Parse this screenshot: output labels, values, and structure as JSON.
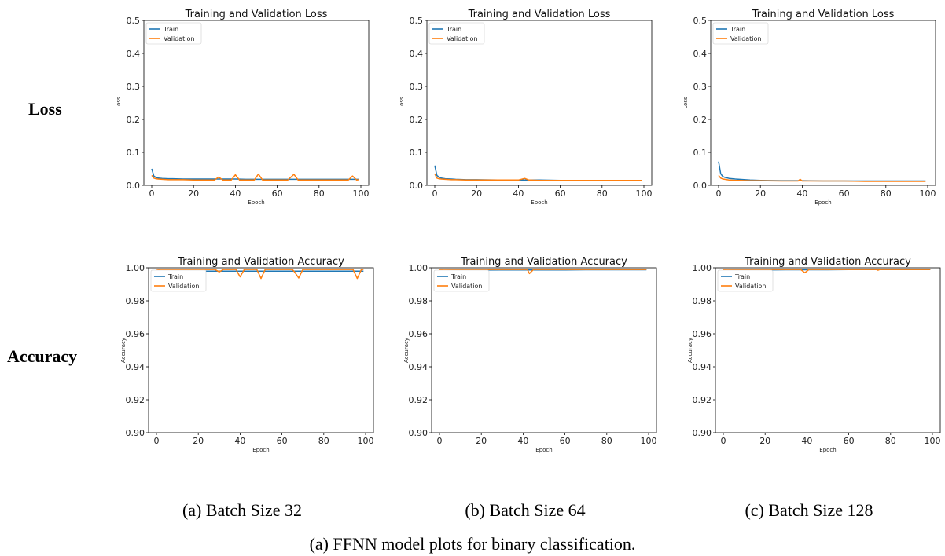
{
  "row_labels": {
    "loss": "Loss",
    "accuracy": "Accuracy"
  },
  "captions": {
    "a": "(a) Batch Size 32",
    "b": "(b) Batch Size 64",
    "c": "(c) Batch Size 128",
    "figure": "(a) FFNN model plots for binary classification."
  },
  "colors": {
    "train": "#1f77b4",
    "validation": "#ff7f0e"
  },
  "chart_data": [
    {
      "type": "line",
      "title": "Training and Validation Loss",
      "xlabel": "Epoch",
      "ylabel": "Loss",
      "xlim": [
        0,
        100
      ],
      "ylim": [
        0,
        0.5
      ],
      "xticks": [
        0,
        20,
        40,
        60,
        80,
        100
      ],
      "xtick_labels": [
        "0",
        "20",
        "40",
        "60",
        "80",
        "100"
      ],
      "yticks": [
        0,
        0.1,
        0.2,
        0.3,
        0.4,
        0.5
      ],
      "ytick_labels": [
        "0.0",
        "0.1",
        "0.2",
        "0.3",
        "0.4",
        "0.5"
      ],
      "grid": false,
      "legend": "top-left",
      "series": [
        {
          "name": "Train",
          "color": "#1f77b4",
          "x": [
            0,
            1,
            2,
            3,
            5,
            8,
            10,
            15,
            20,
            25,
            30,
            35,
            40,
            45,
            50,
            55,
            60,
            65,
            70,
            75,
            80,
            85,
            90,
            95,
            99
          ],
          "y": [
            0.05,
            0.028,
            0.024,
            0.022,
            0.021,
            0.02,
            0.02,
            0.019,
            0.019,
            0.019,
            0.019,
            0.019,
            0.019,
            0.018,
            0.018,
            0.018,
            0.018,
            0.018,
            0.018,
            0.018,
            0.018,
            0.018,
            0.018,
            0.018,
            0.018
          ]
        },
        {
          "name": "Validation",
          "color": "#ff7f0e",
          "x": [
            0,
            1,
            2,
            3,
            5,
            8,
            10,
            15,
            20,
            25,
            30,
            32,
            34,
            38,
            40,
            42,
            45,
            49,
            51,
            53,
            60,
            65,
            68,
            70,
            75,
            80,
            85,
            90,
            94,
            96,
            98,
            99
          ],
          "y": [
            0.03,
            0.022,
            0.02,
            0.019,
            0.018,
            0.017,
            0.017,
            0.017,
            0.016,
            0.016,
            0.016,
            0.025,
            0.016,
            0.016,
            0.032,
            0.016,
            0.016,
            0.016,
            0.034,
            0.016,
            0.016,
            0.016,
            0.033,
            0.016,
            0.016,
            0.016,
            0.016,
            0.016,
            0.016,
            0.028,
            0.016,
            0.017
          ]
        }
      ]
    },
    {
      "type": "line",
      "title": "Training and Validation Loss",
      "xlabel": "Epoch",
      "ylabel": "Loss",
      "xlim": [
        0,
        100
      ],
      "ylim": [
        0,
        0.5
      ],
      "xticks": [
        0,
        20,
        40,
        60,
        80,
        100
      ],
      "xtick_labels": [
        "0",
        "20",
        "40",
        "60",
        "80",
        "100"
      ],
      "yticks": [
        0,
        0.1,
        0.2,
        0.3,
        0.4,
        0.5
      ],
      "ytick_labels": [
        "0.0",
        "0.1",
        "0.2",
        "0.3",
        "0.4",
        "0.5"
      ],
      "grid": false,
      "legend": "top-left",
      "series": [
        {
          "name": "Train",
          "color": "#1f77b4",
          "x": [
            0,
            1,
            2,
            3,
            5,
            8,
            10,
            15,
            20,
            30,
            40,
            50,
            60,
            70,
            80,
            90,
            99
          ],
          "y": [
            0.06,
            0.03,
            0.025,
            0.022,
            0.02,
            0.019,
            0.018,
            0.017,
            0.017,
            0.016,
            0.016,
            0.016,
            0.015,
            0.015,
            0.015,
            0.015,
            0.015
          ]
        },
        {
          "name": "Validation",
          "color": "#ff7f0e",
          "x": [
            0,
            1,
            2,
            3,
            5,
            8,
            10,
            15,
            20,
            30,
            40,
            43,
            45,
            50,
            60,
            70,
            80,
            90,
            99
          ],
          "y": [
            0.035,
            0.022,
            0.02,
            0.019,
            0.018,
            0.017,
            0.017,
            0.016,
            0.016,
            0.016,
            0.016,
            0.021,
            0.016,
            0.015,
            0.015,
            0.015,
            0.015,
            0.015,
            0.015
          ]
        }
      ]
    },
    {
      "type": "line",
      "title": "Training and Validation Loss",
      "xlabel": "Epoch",
      "ylabel": "Loss",
      "xlim": [
        0,
        100
      ],
      "ylim": [
        0,
        0.5
      ],
      "xticks": [
        0,
        20,
        40,
        60,
        80,
        100
      ],
      "xtick_labels": [
        "0",
        "20",
        "40",
        "60",
        "80",
        "100"
      ],
      "yticks": [
        0,
        0.1,
        0.2,
        0.3,
        0.4,
        0.5
      ],
      "ytick_labels": [
        "0.0",
        "0.1",
        "0.2",
        "0.3",
        "0.4",
        "0.5"
      ],
      "grid": false,
      "legend": "top-left",
      "series": [
        {
          "name": "Train",
          "color": "#1f77b4",
          "x": [
            0,
            1,
            2,
            3,
            5,
            8,
            10,
            15,
            20,
            30,
            40,
            50,
            60,
            70,
            80,
            90,
            99
          ],
          "y": [
            0.072,
            0.035,
            0.027,
            0.024,
            0.021,
            0.019,
            0.018,
            0.016,
            0.015,
            0.014,
            0.014,
            0.013,
            0.013,
            0.013,
            0.013,
            0.013,
            0.013
          ]
        },
        {
          "name": "Validation",
          "color": "#ff7f0e",
          "x": [
            0,
            1,
            2,
            3,
            5,
            8,
            10,
            15,
            20,
            30,
            38,
            39,
            40,
            50,
            60,
            70,
            80,
            90,
            99
          ],
          "y": [
            0.03,
            0.022,
            0.019,
            0.018,
            0.016,
            0.015,
            0.015,
            0.014,
            0.014,
            0.013,
            0.013,
            0.018,
            0.013,
            0.013,
            0.013,
            0.012,
            0.012,
            0.012,
            0.012
          ]
        }
      ]
    },
    {
      "type": "line",
      "title": "Training and Validation Accuracy",
      "xlabel": "Epoch",
      "ylabel": "Accuracy",
      "xlim": [
        0,
        100
      ],
      "ylim": [
        0.9,
        1.0
      ],
      "xticks": [
        0,
        20,
        40,
        60,
        80,
        100
      ],
      "xtick_labels": [
        "0",
        "20",
        "40",
        "60",
        "80",
        "100"
      ],
      "yticks": [
        0.9,
        0.92,
        0.94,
        0.96,
        0.98,
        1.0
      ],
      "ytick_labels": [
        "0.90",
        "0.92",
        "0.94",
        "0.96",
        "0.98",
        "1.00"
      ],
      "grid": false,
      "legend": "top-left",
      "series": [
        {
          "name": "Train",
          "color": "#1f77b4",
          "x": [
            0,
            2,
            5,
            10,
            20,
            30,
            40,
            50,
            60,
            70,
            80,
            90,
            99
          ],
          "y": [
            0.9975,
            0.9978,
            0.998,
            0.998,
            0.998,
            0.998,
            0.998,
            0.998,
            0.998,
            0.998,
            0.998,
            0.998,
            0.998
          ]
        },
        {
          "name": "Validation",
          "color": "#ff7f0e",
          "x": [
            0,
            2,
            5,
            10,
            20,
            28,
            30,
            32,
            38,
            40,
            42,
            48,
            50,
            52,
            55,
            60,
            65,
            66,
            68,
            70,
            75,
            80,
            85,
            90,
            94,
            96,
            98,
            99
          ],
          "y": [
            0.9985,
            0.999,
            0.999,
            0.999,
            0.999,
            0.999,
            0.9975,
            0.999,
            0.999,
            0.9945,
            0.999,
            0.999,
            0.9935,
            0.999,
            0.999,
            0.999,
            0.999,
            0.9975,
            0.9938,
            0.999,
            0.999,
            0.999,
            0.999,
            0.999,
            0.999,
            0.9935,
            0.999,
            0.999
          ]
        }
      ]
    },
    {
      "type": "line",
      "title": "Training and Validation Accuracy",
      "xlabel": "Epoch",
      "ylabel": "Accuracy",
      "xlim": [
        0,
        100
      ],
      "ylim": [
        0.9,
        1.0
      ],
      "xticks": [
        0,
        20,
        40,
        60,
        80,
        100
      ],
      "xtick_labels": [
        "0",
        "20",
        "40",
        "60",
        "80",
        "100"
      ],
      "yticks": [
        0.9,
        0.92,
        0.94,
        0.96,
        0.98,
        1.0
      ],
      "ytick_labels": [
        "0.90",
        "0.92",
        "0.94",
        "0.96",
        "0.98",
        "1.00"
      ],
      "grid": false,
      "legend": "top-left",
      "series": [
        {
          "name": "Train",
          "color": "#1f77b4",
          "x": [
            0,
            2,
            5,
            10,
            20,
            30,
            40,
            50,
            60,
            70,
            80,
            90,
            99
          ],
          "y": [
            0.998,
            0.9982,
            0.9984,
            0.9985,
            0.9986,
            0.9987,
            0.9987,
            0.9987,
            0.9987,
            0.9988,
            0.9988,
            0.9988,
            0.9988
          ]
        },
        {
          "name": "Validation",
          "color": "#ff7f0e",
          "x": [
            0,
            2,
            5,
            10,
            20,
            30,
            40,
            42,
            43,
            45,
            50,
            60,
            70,
            80,
            90,
            99
          ],
          "y": [
            0.9988,
            0.999,
            0.999,
            0.999,
            0.999,
            0.999,
            0.999,
            0.999,
            0.9965,
            0.999,
            0.999,
            0.999,
            0.999,
            0.999,
            0.999,
            0.999
          ]
        }
      ]
    },
    {
      "type": "line",
      "title": "Training and Validation Accuracy",
      "xlabel": "Epoch",
      "ylabel": "Accuracy",
      "xlim": [
        0,
        100
      ],
      "ylim": [
        0.9,
        1.0
      ],
      "xticks": [
        0,
        20,
        40,
        60,
        80,
        100
      ],
      "xtick_labels": [
        "0",
        "20",
        "40",
        "60",
        "80",
        "100"
      ],
      "yticks": [
        0.9,
        0.92,
        0.94,
        0.96,
        0.98,
        1.0
      ],
      "ytick_labels": [
        "0.90",
        "0.92",
        "0.94",
        "0.96",
        "0.98",
        "1.00"
      ],
      "grid": false,
      "legend": "top-left",
      "series": [
        {
          "name": "Train",
          "color": "#1f77b4",
          "x": [
            0,
            2,
            5,
            10,
            20,
            30,
            40,
            50,
            60,
            70,
            80,
            90,
            99
          ],
          "y": [
            0.998,
            0.9983,
            0.9985,
            0.9986,
            0.9987,
            0.9988,
            0.9988,
            0.9988,
            0.9989,
            0.9989,
            0.9989,
            0.9989,
            0.9989
          ]
        },
        {
          "name": "Validation",
          "color": "#ff7f0e",
          "x": [
            0,
            2,
            5,
            10,
            20,
            30,
            37,
            39,
            41,
            50,
            60,
            70,
            73,
            74,
            75,
            80,
            90,
            99
          ],
          "y": [
            0.9988,
            0.999,
            0.999,
            0.999,
            0.999,
            0.999,
            0.999,
            0.997,
            0.999,
            0.999,
            0.999,
            0.999,
            0.999,
            0.9985,
            0.999,
            0.999,
            0.999,
            0.999
          ]
        }
      ]
    }
  ]
}
